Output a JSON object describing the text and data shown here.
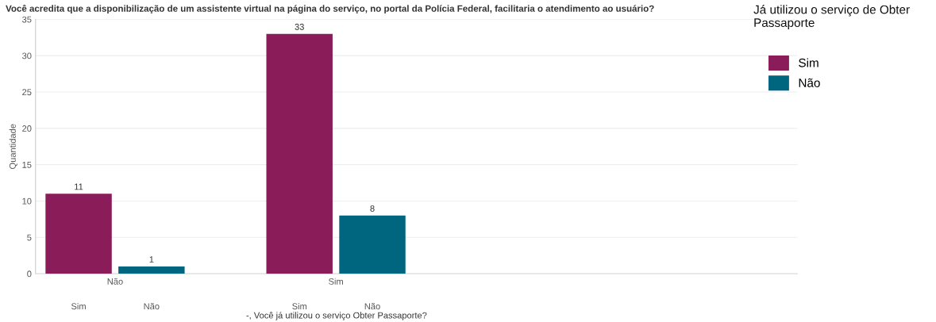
{
  "chart_data": {
    "type": "bar",
    "title": "Você acredita que a disponibilização de um assistente virtual na página do serviço, no portal da Polícia Federal, facilitaria o atendimento ao usuário?",
    "xlabel": "-, Você já utilizou o serviço Obter Passaporte?",
    "ylabel": "Quantidade",
    "legend_title": "Já utilizou o serviço de Obter Passaporte",
    "categories": [
      "Não",
      "Sim"
    ],
    "series": [
      {
        "name": "Sim",
        "color": "#8a1c5a",
        "values": [
          11,
          33
        ]
      },
      {
        "name": "Não",
        "color": "#006680",
        "values": [
          1,
          8
        ]
      }
    ],
    "ylim": [
      0,
      35
    ],
    "yticks": [
      0,
      5,
      10,
      15,
      20,
      25,
      30,
      35
    ],
    "grid": "y",
    "legend": "top right",
    "data_labels": true
  }
}
